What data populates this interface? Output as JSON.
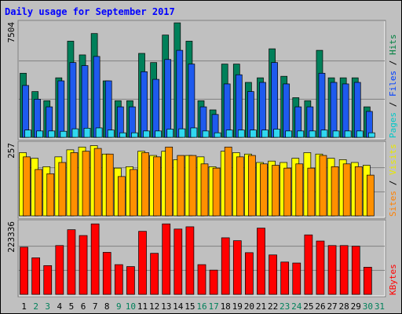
{
  "chart_data": {
    "type": "bar",
    "title": "Daily usage for September 2017",
    "categories": [
      "1",
      "2",
      "3",
      "4",
      "5",
      "6",
      "7",
      "8",
      "9",
      "10",
      "11",
      "12",
      "13",
      "14",
      "15",
      "16",
      "17",
      "18",
      "19",
      "20",
      "21",
      "22",
      "23",
      "24",
      "25",
      "26",
      "27",
      "28",
      "29",
      "30",
      "31"
    ],
    "weekend_days": [
      2,
      3,
      9,
      10,
      16,
      17,
      23,
      24,
      30,
      31
    ],
    "panels": [
      {
        "ylabel_max": "7504",
        "ymax": 7504,
        "axis_label_parts": [
          {
            "text": "Pages",
            "color": "#00C8C8"
          },
          {
            "text": " / ",
            "color": "#000000"
          },
          {
            "text": "Files",
            "color": "#0040FF"
          },
          {
            "text": " / ",
            "color": "#000000"
          },
          {
            "text": "Hits",
            "color": "#008040"
          }
        ],
        "series": [
          {
            "name": "Hits",
            "color": "#00805A",
            "values": [
              4200,
              3000,
              2400,
              3900,
              6300,
              5400,
              6800,
              3700,
              2400,
              2400,
              5500,
              4900,
              6700,
              7500,
              6300,
              2400,
              1800,
              4800,
              4800,
              3600,
              3900,
              5800,
              4000,
              2600,
              2400,
              5700,
              3900,
              3900,
              3900,
              2000,
              0
            ]
          },
          {
            "name": "Files",
            "color": "#1E5AEE",
            "values": [
              3400,
              2500,
              2000,
              3700,
              4900,
              4700,
              5300,
              3700,
              2000,
              2000,
              4300,
              3800,
              5100,
              5700,
              4800,
              2000,
              1500,
              3500,
              4100,
              3000,
              3600,
              4900,
              3500,
              2000,
              2000,
              4200,
              3600,
              3500,
              3600,
              1700,
              0
            ]
          },
          {
            "name": "Pages",
            "color": "#30D8F0",
            "values": [
              480,
              420,
              420,
              400,
              560,
              600,
              620,
              480,
              300,
              300,
              420,
              420,
              540,
              560,
              620,
              420,
              300,
              480,
              480,
              480,
              480,
              540,
              420,
              420,
              420,
              480,
              420,
              420,
              420,
              300,
              0
            ]
          }
        ]
      },
      {
        "ylabel_max": "257",
        "ymax": 257,
        "axis_label_parts": [
          {
            "text": "Sites",
            "color": "#FF8000"
          },
          {
            "text": " / ",
            "color": "#000000"
          },
          {
            "text": "Visits",
            "color": "#E8E800"
          }
        ],
        "series": [
          {
            "name": "Visits",
            "color": "#FFFF00",
            "values": [
              225,
              205,
              175,
              210,
              235,
              245,
              250,
              220,
              170,
              175,
              230,
              215,
              230,
              200,
              215,
              210,
              175,
              230,
              225,
              220,
              190,
              195,
              190,
              205,
              225,
              220,
              205,
              200,
              190,
              180,
              0
            ]
          },
          {
            "name": "Sites",
            "color": "#FF9000",
            "values": [
              210,
              165,
              150,
              190,
              225,
              230,
              240,
              220,
              140,
              165,
              225,
              210,
              245,
              215,
              215,
              185,
              170,
              245,
              210,
              215,
              185,
              180,
              170,
              185,
              170,
              215,
              175,
              185,
              175,
              145,
              0
            ]
          }
        ]
      },
      {
        "ylabel_max": "223336",
        "ymax": 223336,
        "axis_label_parts": [
          {
            "text": "KBytes",
            "color": "#FF0000"
          }
        ],
        "series": [
          {
            "name": "KBytes",
            "color": "#FF0000",
            "values": [
              146000,
              113000,
              89000,
              151000,
              200000,
              182000,
              218000,
              130000,
              92000,
              86000,
              195000,
              127000,
              218000,
              202000,
              209000,
              92000,
              75000,
              175000,
              166000,
              129000,
              205000,
              122000,
              100000,
              97000,
              184000,
              165000,
              151000,
              151000,
              149000,
              84000,
              0
            ]
          }
        ]
      }
    ]
  }
}
